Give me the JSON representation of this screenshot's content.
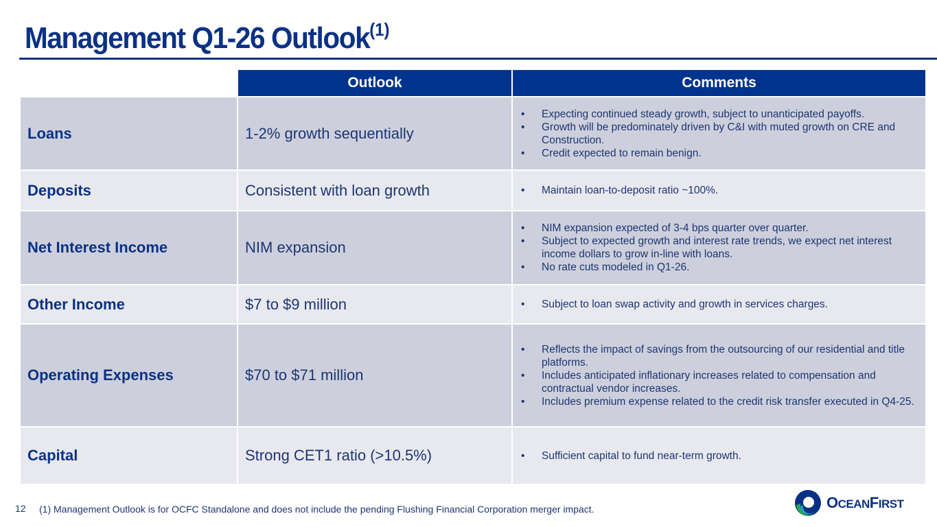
{
  "title": "Management Q1-26 Outlook",
  "title_sup": "(1)",
  "table": {
    "headers": [
      "Outlook",
      "Comments"
    ],
    "rows": [
      {
        "category": "Loans",
        "outlook": "1-2% growth sequentially",
        "comments": [
          "Expecting continued steady growth, subject to unanticipated payoffs.",
          "Growth will be predominately driven by C&I with muted growth on CRE and Construction.",
          "Credit expected to remain benign."
        ]
      },
      {
        "category": "Deposits",
        "outlook": "Consistent with loan growth",
        "comments": [
          "Maintain loan-to-deposit ratio ~100%."
        ]
      },
      {
        "category": "Net Interest Income",
        "outlook": "NIM expansion",
        "comments": [
          "NIM expansion expected of 3-4 bps quarter over quarter.",
          "Subject to expected growth and interest rate trends, we expect net interest income dollars to grow in-line with loans.",
          "No rate cuts modeled in Q1-26."
        ]
      },
      {
        "category": "Other Income",
        "outlook": "$7 to $9 million",
        "comments": [
          "Subject to loan swap activity and growth in services charges."
        ]
      },
      {
        "category": "Operating Expenses",
        "outlook": "$70 to $71 million",
        "comments": [
          "Reflects the impact of savings from the outsourcing of our residential and title platforms.",
          "Includes anticipated inflationary increases related to compensation and contractual vendor increases.",
          "Includes premium expense related to the credit risk transfer executed in Q4-25."
        ]
      },
      {
        "category": "Capital",
        "outlook": "Strong CET1 ratio (>10.5%)",
        "comments": [
          "Sufficient capital to fund near-term growth."
        ]
      }
    ]
  },
  "page_number": "12",
  "footnote": "(1)  Management Outlook is for OCFC Standalone and does not include the pending Flushing Financial Corporation merger impact.",
  "logo": {
    "text": "OceanFirst",
    "colors": {
      "navy": "#0a3184",
      "green": "#2bab4a",
      "teal": "#1aa3d9"
    }
  }
}
